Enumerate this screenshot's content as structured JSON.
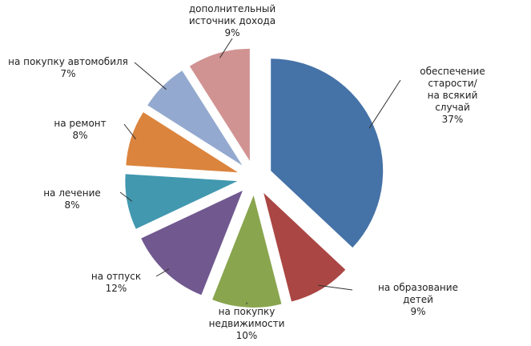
{
  "chart_data": {
    "type": "pie",
    "categories": [
      "обеспечение старости/\nна всякий случай",
      "на образование детей",
      "на покупку\nнедвижимости",
      "на отпуск",
      "на лечение",
      "на ремонт",
      "на покупку автомобиля",
      "дополнительный\nисточник дохода"
    ],
    "values": [
      37,
      9,
      10,
      12,
      8,
      8,
      7,
      9
    ],
    "value_labels": [
      "37%",
      "9%",
      "10%",
      "12%",
      "8%",
      "8%",
      "7%",
      "9%"
    ],
    "colors": [
      "#4572a7",
      "#aa4643",
      "#89a54e",
      "#71588f",
      "#4198af",
      "#db843d",
      "#93a9cf",
      "#d19392"
    ]
  }
}
